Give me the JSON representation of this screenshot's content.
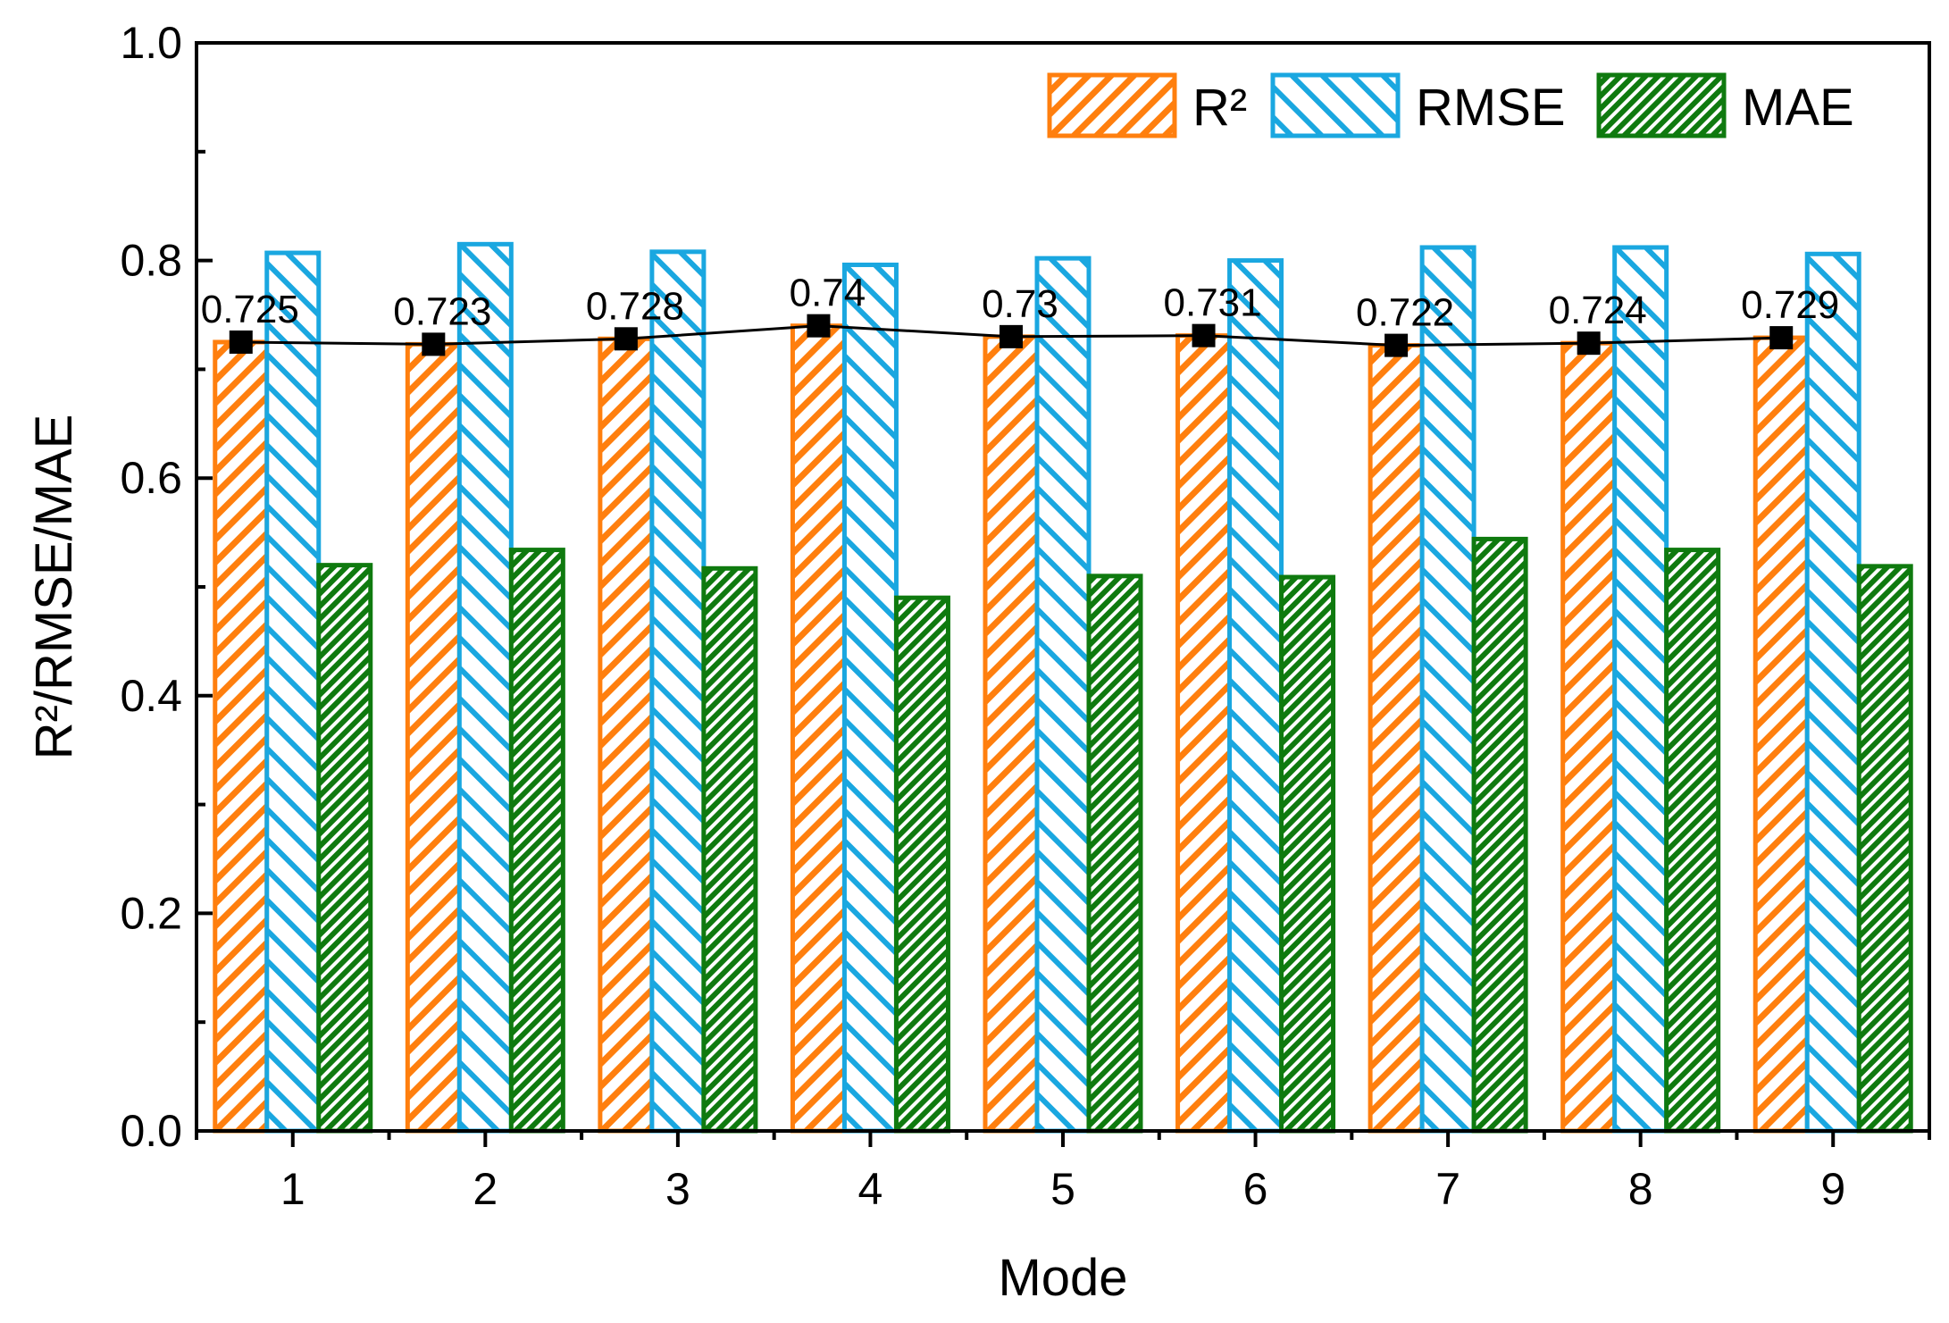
{
  "chart_data": {
    "type": "bar",
    "xlabel": "Mode",
    "ylabel": "R²/RMSE/MAE",
    "ylim": [
      0.0,
      1.0
    ],
    "yticks": [
      "0.0",
      "0.2",
      "0.4",
      "0.6",
      "0.8",
      "1.0"
    ],
    "categories": [
      "1",
      "2",
      "3",
      "4",
      "5",
      "6",
      "7",
      "8",
      "9"
    ],
    "series": [
      {
        "name": "R²",
        "values": [
          0.725,
          0.723,
          0.728,
          0.74,
          0.73,
          0.731,
          0.722,
          0.724,
          0.729
        ],
        "color": "#ff7f0e",
        "hatch": "forward-diagonal"
      },
      {
        "name": "RMSE",
        "values": [
          0.807,
          0.815,
          0.808,
          0.796,
          0.802,
          0.8,
          0.812,
          0.812,
          0.806
        ],
        "color": "#1aa7e0",
        "hatch": "backward-diagonal"
      },
      {
        "name": "MAE",
        "values": [
          0.52,
          0.534,
          0.517,
          0.49,
          0.51,
          0.509,
          0.544,
          0.534,
          0.519
        ],
        "color": "#0f7a0f",
        "hatch": "dense-diagonal"
      }
    ],
    "line": {
      "series": "R²",
      "color": "#000000",
      "marker": "square",
      "labels": [
        "0.725",
        "0.723",
        "0.728",
        "0.74",
        "0.73",
        "0.731",
        "0.722",
        "0.724",
        "0.729"
      ]
    },
    "legend": {
      "placement": "top-right",
      "orientation": "horizontal"
    },
    "grid": false
  }
}
